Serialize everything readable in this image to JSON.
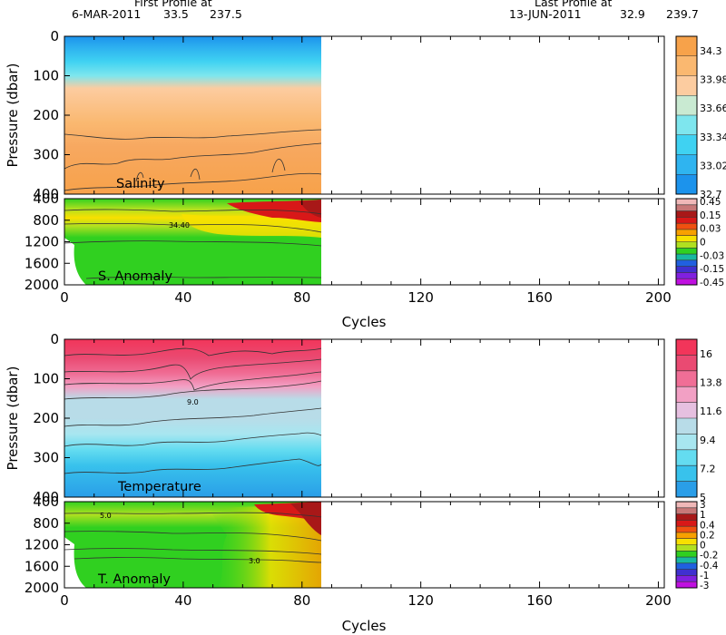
{
  "header": {
    "first_title": "First Profile at",
    "first_date": "6-MAR-2011",
    "first_lat": "33.5",
    "first_lon": "237.5",
    "last_title": "Last Profile at",
    "last_date": "13-JUN-2011",
    "last_lat": "32.9",
    "last_lon": "239.7"
  },
  "chart_data": [
    {
      "type": "heatmap",
      "panel": "Salinity",
      "label": "Salinity",
      "xlabel": "",
      "ylabel": "Pressure (dbar)",
      "xlim": [
        0,
        202
      ],
      "ylim": [
        400,
        0
      ],
      "data_xlim": [
        0,
        86
      ],
      "x_ticks": [
        0,
        40,
        80,
        120,
        160,
        200
      ],
      "y_ticks": [
        0,
        100,
        200,
        300,
        400
      ],
      "depth_bands": [
        {
          "from": 0,
          "to": 60,
          "value": 33.2
        },
        {
          "from": 60,
          "to": 100,
          "value": 33.5
        },
        {
          "from": 100,
          "to": 150,
          "value": 33.8
        },
        {
          "from": 150,
          "to": 230,
          "value": 34.0
        },
        {
          "from": 230,
          "to": 400,
          "value": 34.2
        }
      ],
      "colorbar": {
        "labels": [
          "34.3",
          "33.98",
          "33.66",
          "33.34",
          "33.02",
          "32.7"
        ],
        "colors": [
          "#f7a24a",
          "#fab870",
          "#fccca0",
          "#c9ead2",
          "#7ee6ee",
          "#3fd2f2",
          "#2fb4f0",
          "#1c93ec"
        ]
      }
    },
    {
      "type": "heatmap",
      "panel": "Salinity anomaly",
      "label": "S. Anomaly",
      "xlabel": "",
      "ylabel": "",
      "xlim": [
        0,
        202
      ],
      "ylim": [
        2000,
        400
      ],
      "data_xlim": [
        0,
        86
      ],
      "x_ticks": [
        0,
        40,
        80,
        120,
        160,
        200
      ],
      "y_ticks": [
        400,
        800,
        1200,
        1600,
        2000
      ],
      "contour_label": "34.40",
      "colorbar": {
        "labels": [
          "0.45",
          "0.15",
          "0.03",
          "0",
          "-0.03",
          "-0.15",
          "-0.45"
        ],
        "colors": [
          "#f0b8b8",
          "#c87878",
          "#a81818",
          "#d81818",
          "#f05010",
          "#f8a000",
          "#f8e000",
          "#b0e020",
          "#30d020",
          "#18b8a0",
          "#2060e0",
          "#4030d0",
          "#8020e0",
          "#c010e0"
        ]
      }
    },
    {
      "type": "heatmap",
      "panel": "Temperature",
      "label": "Temperature",
      "xlabel": "Cycles",
      "ylabel": "Pressure (dbar)",
      "xlim": [
        0,
        202
      ],
      "ylim": [
        400,
        0
      ],
      "data_xlim": [
        0,
        86
      ],
      "x_ticks": [
        0,
        40,
        80,
        120,
        160,
        200
      ],
      "y_ticks": [
        0,
        100,
        200,
        300,
        400
      ],
      "contour_label": "9.0",
      "depth_bands": [
        {
          "from": 0,
          "to": 50,
          "value": 14.5
        },
        {
          "from": 50,
          "to": 100,
          "value": 12.0
        },
        {
          "from": 100,
          "to": 150,
          "value": 10.5
        },
        {
          "from": 150,
          "to": 220,
          "value": 9.0
        },
        {
          "from": 220,
          "to": 300,
          "value": 8.0
        },
        {
          "from": 300,
          "to": 400,
          "value": 7.0
        }
      ],
      "colorbar": {
        "labels": [
          "16",
          "13.8",
          "11.6",
          "9.4",
          "7.2",
          "5"
        ],
        "colors": [
          "#f2355a",
          "#ea4a72",
          "#f06e96",
          "#f2a0c4",
          "#e6c0e0",
          "#b8dce8",
          "#a8e6f0",
          "#64dcf0",
          "#38c2ec",
          "#2a9ee8"
        ]
      }
    },
    {
      "type": "heatmap",
      "panel": "Temperature anomaly",
      "label": "T. Anomaly",
      "xlabel": "Cycles",
      "ylabel": "",
      "xlim": [
        0,
        202
      ],
      "ylim": [
        2000,
        400
      ],
      "data_xlim": [
        0,
        86
      ],
      "x_ticks": [
        0,
        40,
        80,
        120,
        160,
        200
      ],
      "y_ticks": [
        400,
        800,
        1200,
        1600,
        2000
      ],
      "contour_labels": [
        "5.0",
        "3.0"
      ],
      "colorbar": {
        "labels": [
          "3",
          "1",
          "0.4",
          "0.2",
          "0",
          "-0.2",
          "-0.4",
          "-1",
          "-3"
        ],
        "colors": [
          "#f0b8b8",
          "#c87878",
          "#a81818",
          "#d81818",
          "#f05010",
          "#f8a000",
          "#f8e000",
          "#b0e020",
          "#30d020",
          "#18b8a0",
          "#2060e0",
          "#4030d0",
          "#8020e0",
          "#c010e0"
        ]
      }
    }
  ]
}
